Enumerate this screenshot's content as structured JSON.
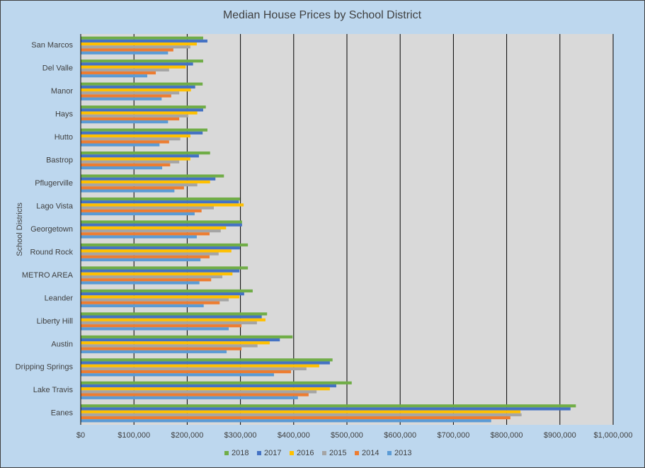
{
  "chart_data": {
    "type": "hbar",
    "title": "Median House Prices by School District",
    "y_label": "School Districts",
    "categories": [
      "San Marcos",
      "Del Valle",
      "Manor",
      "Hays",
      "Hutto",
      "Bastrop",
      "Pflugerville",
      "Lago Vista",
      "Georgetown",
      "Round Rock",
      "METRO AREA",
      "Leander",
      "Liberty Hill",
      "Austin",
      "Dripping Springs",
      "Lake Travis",
      "Eanes"
    ],
    "series": [
      {
        "name": "2018",
        "color": "#70ad47",
        "values": [
          230000,
          230000,
          229000,
          235000,
          238000,
          243000,
          269000,
          299000,
          303000,
          314000,
          314000,
          323000,
          350000,
          398000,
          473000,
          509000,
          930000
        ]
      },
      {
        "name": "2017",
        "color": "#4472c4",
        "values": [
          238000,
          211000,
          215000,
          230000,
          229000,
          222000,
          253000,
          297000,
          303000,
          299000,
          298000,
          307000,
          340000,
          374000,
          468000,
          480000,
          920000
        ]
      },
      {
        "name": "2016",
        "color": "#ffc000",
        "values": [
          218000,
          197000,
          207000,
          219000,
          206000,
          206000,
          243000,
          306000,
          273000,
          283000,
          285000,
          298000,
          347000,
          355000,
          448000,
          468000,
          826000
        ]
      },
      {
        "name": "2015",
        "color": "#a5a5a5",
        "values": [
          206000,
          166000,
          185000,
          202000,
          187000,
          185000,
          219000,
          250000,
          263000,
          259000,
          266000,
          278000,
          331000,
          332000,
          424000,
          443000,
          828000
        ]
      },
      {
        "name": "2014",
        "color": "#ed7d31",
        "values": [
          174000,
          141000,
          170000,
          185000,
          166000,
          168000,
          194000,
          227000,
          242000,
          242000,
          245000,
          261000,
          302000,
          302000,
          395000,
          428000,
          807000
        ]
      },
      {
        "name": "2013",
        "color": "#5b9bd5",
        "values": [
          164000,
          125000,
          152000,
          164000,
          148000,
          153000,
          176000,
          214000,
          218000,
          225000,
          223000,
          231000,
          278000,
          274000,
          363000,
          408000,
          771000
        ]
      }
    ],
    "xlim": [
      0,
      1000000
    ],
    "xticks": [
      {
        "value": 0,
        "label": "$0"
      },
      {
        "value": 100000,
        "label": "$100,000"
      },
      {
        "value": 200000,
        "label": "$200,000"
      },
      {
        "value": 300000,
        "label": "$300,000"
      },
      {
        "value": 400000,
        "label": "$400,000"
      },
      {
        "value": 500000,
        "label": "$500,000"
      },
      {
        "value": 600000,
        "label": "$600,000"
      },
      {
        "value": 700000,
        "label": "$700,000"
      },
      {
        "value": 800000,
        "label": "$800,000"
      },
      {
        "value": 900000,
        "label": "$900,000"
      },
      {
        "value": 1000000,
        "label": "$1,000,000"
      }
    ],
    "grid": true,
    "legend": "bottom"
  }
}
